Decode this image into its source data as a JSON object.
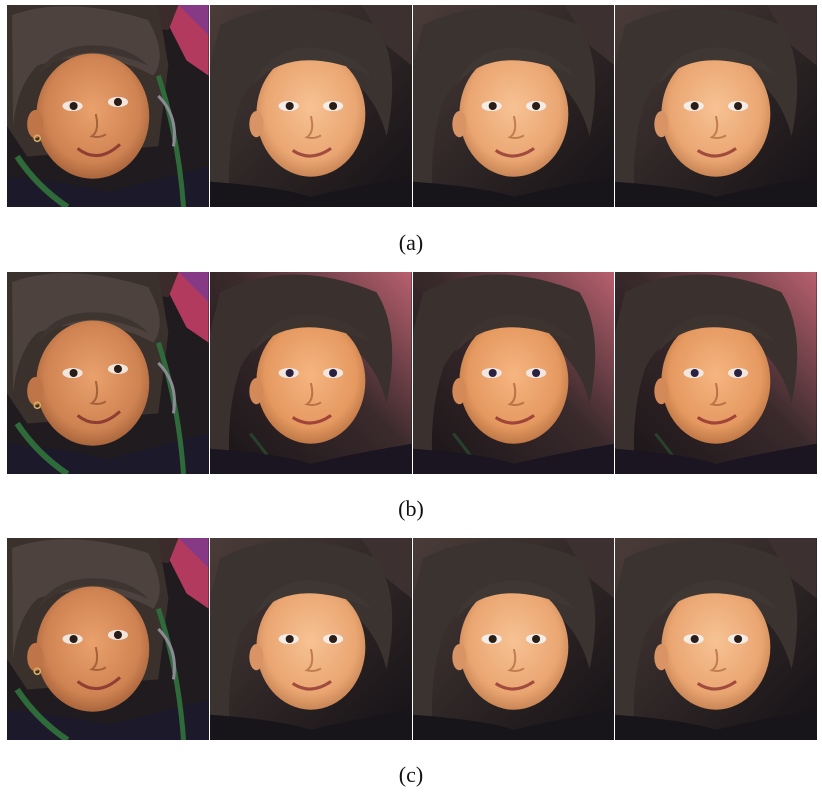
{
  "figure": {
    "rows": [
      {
        "caption": "(a)",
        "panels": [
          {
            "kind": "input",
            "icon": "child-portrait-original"
          },
          {
            "kind": "output",
            "icon": "child-portrait-restored"
          },
          {
            "kind": "output",
            "icon": "child-portrait-restored"
          },
          {
            "kind": "output",
            "icon": "child-portrait-restored"
          }
        ]
      },
      {
        "caption": "(b)",
        "panels": [
          {
            "kind": "input",
            "icon": "child-portrait-original"
          },
          {
            "kind": "output",
            "icon": "child-portrait-restored"
          },
          {
            "kind": "output",
            "icon": "child-portrait-restored"
          },
          {
            "kind": "output",
            "icon": "child-portrait-restored"
          }
        ]
      },
      {
        "caption": "(c)",
        "panels": [
          {
            "kind": "input",
            "icon": "child-portrait-original"
          },
          {
            "kind": "output",
            "icon": "child-portrait-restored"
          },
          {
            "kind": "output",
            "icon": "child-portrait-restored"
          },
          {
            "kind": "output",
            "icon": "child-portrait-restored"
          }
        ]
      }
    ]
  },
  "colors": {
    "background": "#ffffff",
    "skin_original": "#d9905f",
    "skin_restored": "#f0b07e",
    "skin_warm_row_b": "#eca06a",
    "hair": "#2b2522",
    "clothing": "#1e1a24",
    "accent_pink": "#c2456a",
    "accent_green": "#2f6a3a"
  }
}
